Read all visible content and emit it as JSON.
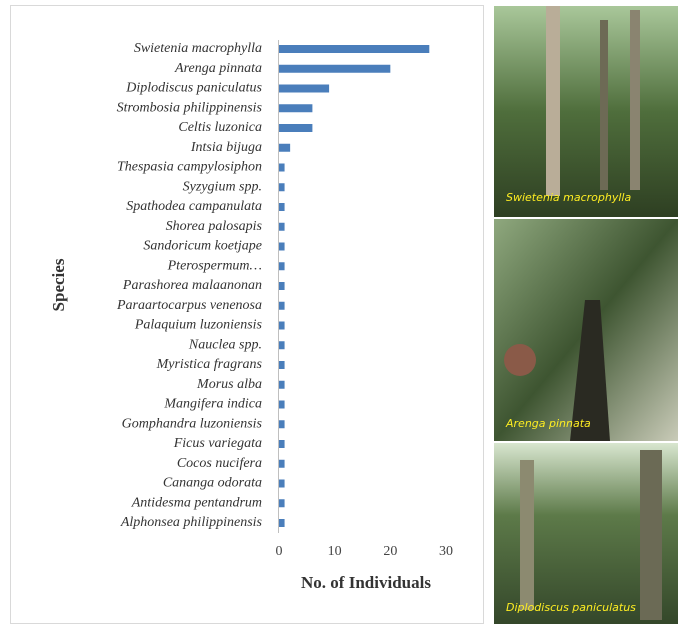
{
  "chart_data": {
    "type": "bar",
    "orientation": "horizontal",
    "categories": [
      "Swietenia macrophylla",
      "Arenga pinnata",
      "Diplodiscus paniculatus",
      "Strombosia philippinensis",
      "Celtis luzonica",
      "Intsia bijuga",
      "Thespasia campylosiphon",
      "Syzygium spp.",
      "Spathodea campanulata",
      "Shorea palosapis",
      "Sandoricum koetjape",
      "Pterospermum…",
      "Parashorea malaanonan",
      "Paraartocarpus venenosa",
      "Palaquium luzoniensis",
      "Nauclea spp.",
      "Myristica fragrans",
      "Morus alba",
      "Mangifera indica",
      "Gomphandra luzoniensis",
      "Ficus variegata",
      "Cocos nucifera",
      "Cananga odorata",
      "Antidesma pentandrum",
      "Alphonsea philippinensis"
    ],
    "values": [
      27,
      20,
      9,
      6,
      6,
      2,
      1,
      1,
      1,
      1,
      1,
      1,
      1,
      1,
      1,
      1,
      1,
      1,
      1,
      1,
      1,
      1,
      1,
      1,
      1
    ],
    "color": "#4a7ebb",
    "xlim": [
      0,
      30
    ],
    "xticks": [
      0,
      10,
      20,
      30
    ],
    "x_label": "No. of Individuals",
    "y_label": "Species"
  },
  "photos": [
    {
      "caption": "Swietenia macrophylla"
    },
    {
      "caption": "Arenga pinnata"
    },
    {
      "caption": "Diplodiscus paniculatus"
    }
  ]
}
